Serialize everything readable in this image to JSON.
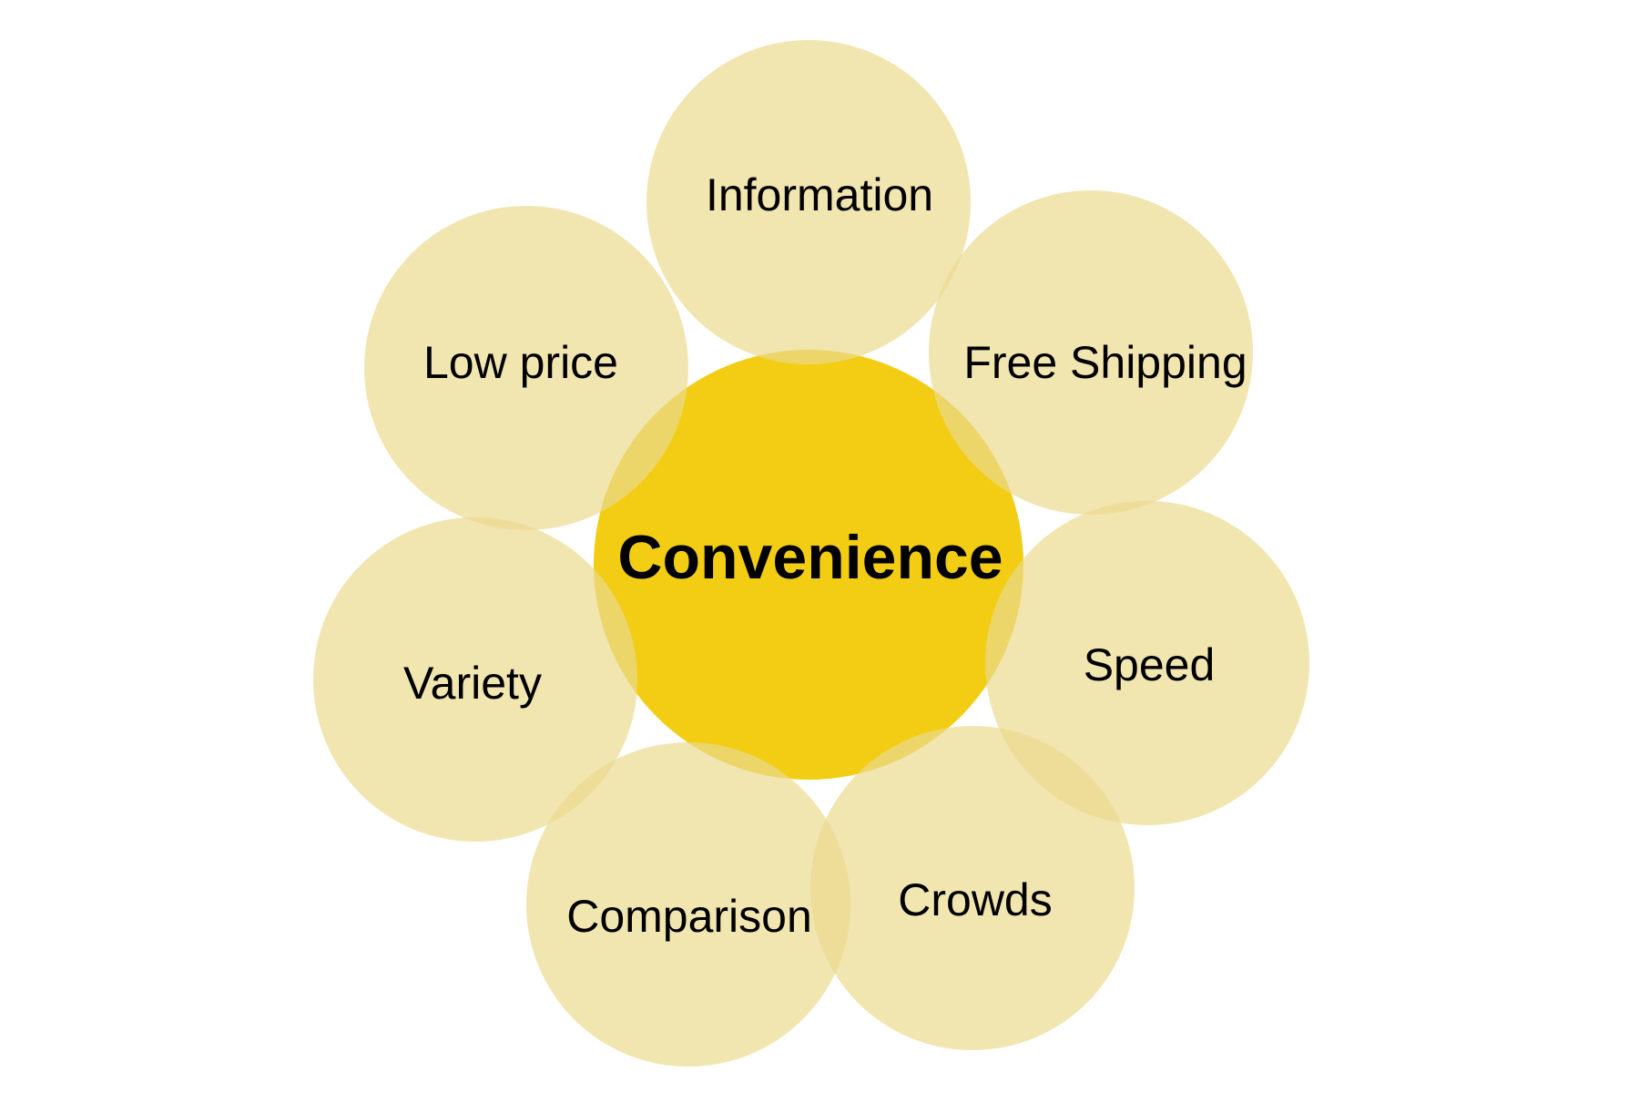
{
  "diagram": {
    "center": {
      "label": "Convenience"
    },
    "petals": [
      {
        "id": "information",
        "label": "Information"
      },
      {
        "id": "free-shipping",
        "label": "Free Shipping"
      },
      {
        "id": "speed",
        "label": "Speed"
      },
      {
        "id": "crowds",
        "label": "Crowds"
      },
      {
        "id": "comparison",
        "label": "Comparison"
      },
      {
        "id": "variety",
        "label": "Variety"
      },
      {
        "id": "low-price",
        "label": "Low price"
      }
    ]
  },
  "colors": {
    "center_fill": "#F2CD13",
    "petal_fill": "#EBDA8E",
    "text": "#000000",
    "background": "#FFFFFF"
  }
}
